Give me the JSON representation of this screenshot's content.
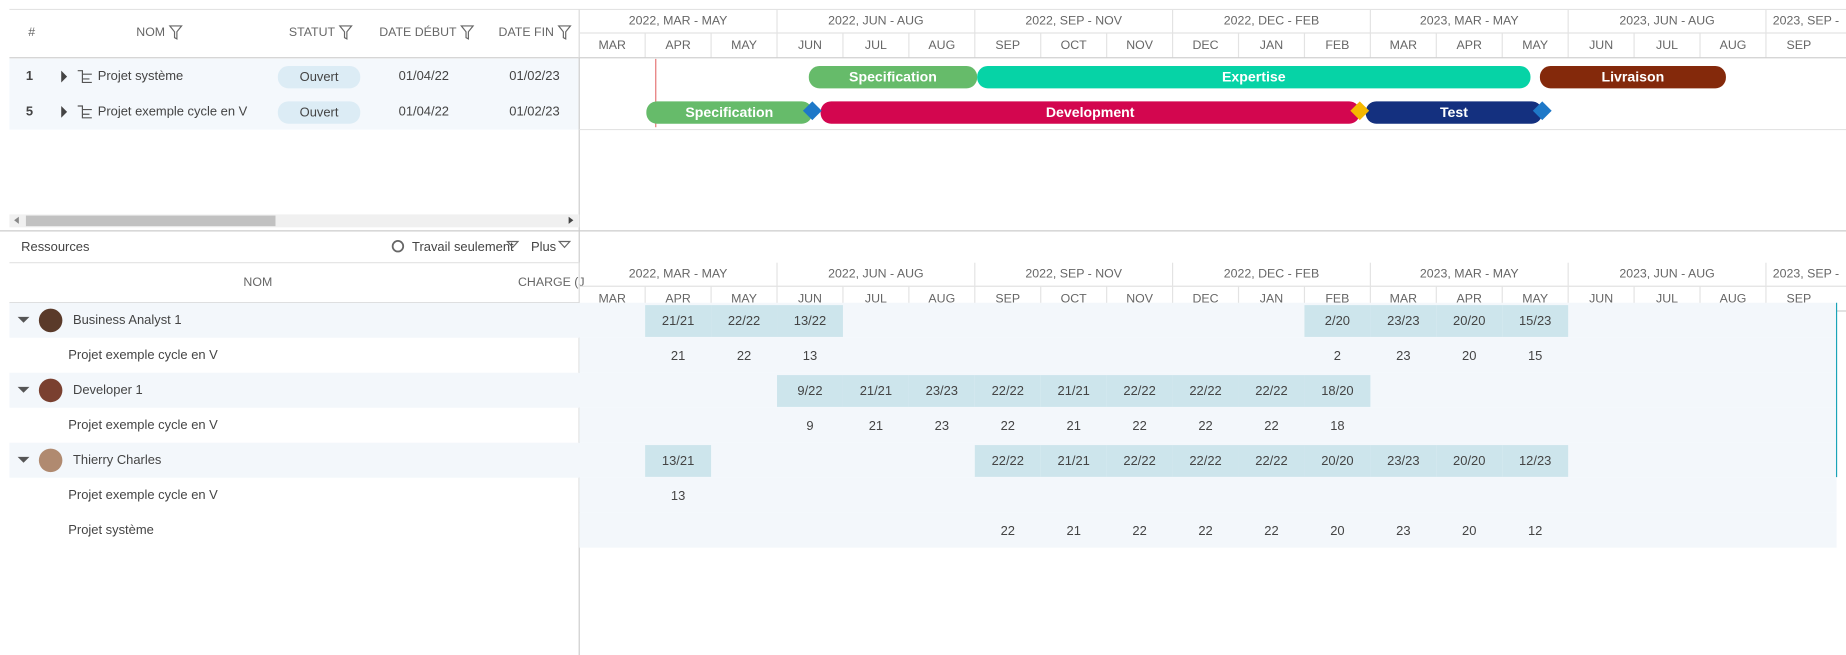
{
  "grid": {
    "headers": [
      "#",
      "NOM",
      "STATUT",
      "DATE DÉBUT",
      "DATE FIN"
    ],
    "rows": [
      {
        "id": "1",
        "name": "Projet système",
        "status": "Ouvert",
        "start": "01/04/22",
        "end": "01/02/23",
        "tasks": [
          "Specification",
          "Expertise",
          "Livraison"
        ]
      },
      {
        "id": "5",
        "name": "Projet exemple cycle en V",
        "status": "Ouvert",
        "start": "01/04/22",
        "end": "01/02/23",
        "tasks": [
          "Specification",
          "Development",
          "Test"
        ]
      }
    ]
  },
  "timeline": {
    "quarters": [
      "2022, MAR - MAY",
      "2022, JUN - AUG",
      "2022, SEP - NOV",
      "2022, DEC - FEB",
      "2023, MAR - MAY",
      "2023, JUN - AUG",
      "2023, SEP -"
    ],
    "months": [
      "MAR",
      "APR",
      "MAY",
      "JUN",
      "JUL",
      "AUG",
      "SEP",
      "OCT",
      "NOV",
      "DEC",
      "JAN",
      "FEB",
      "MAR",
      "APR",
      "MAY",
      "JUN",
      "JUL",
      "AUG",
      "SEP"
    ]
  },
  "resources": {
    "title": "Ressources",
    "options": [
      "Travail seulement",
      "Plus"
    ],
    "headers": [
      "NOM",
      "CHARGE (J"
    ],
    "rows": [
      {
        "name": "Business Analyst 1",
        "level": 0,
        "cells": [
          null,
          "21/21",
          "22/22",
          "13/22",
          null,
          null,
          null,
          null,
          null,
          null,
          null,
          "2/20",
          "23/23",
          "20/20",
          "15/23",
          null,
          null,
          null,
          null
        ]
      },
      {
        "name": "Projet exemple cycle en V",
        "level": 1,
        "cells": [
          null,
          "21",
          "22",
          "13",
          null,
          null,
          null,
          null,
          null,
          null,
          null,
          "2",
          "23",
          "20",
          "15",
          null,
          null,
          null,
          null
        ]
      },
      {
        "name": "Developer 1",
        "level": 0,
        "cells": [
          null,
          null,
          null,
          "9/22",
          "21/21",
          "23/23",
          "22/22",
          "21/21",
          "22/22",
          "22/22",
          "22/22",
          "18/20",
          null,
          null,
          null,
          null,
          null,
          null,
          null
        ]
      },
      {
        "name": "Projet exemple cycle en V",
        "level": 1,
        "cells": [
          null,
          null,
          null,
          "9",
          "21",
          "23",
          "22",
          "21",
          "22",
          "22",
          "22",
          "18",
          null,
          null,
          null,
          null,
          null,
          null,
          null
        ]
      },
      {
        "name": "Thierry Charles",
        "level": 0,
        "cells": [
          null,
          "13/21",
          null,
          null,
          null,
          null,
          "22/22",
          "21/21",
          "22/22",
          "22/22",
          "22/22",
          "20/20",
          "23/23",
          "20/20",
          "12/23",
          null,
          null,
          null,
          null
        ]
      },
      {
        "name": "Projet exemple cycle en V",
        "level": 1,
        "cells": [
          null,
          "13",
          null,
          null,
          null,
          null,
          null,
          null,
          null,
          null,
          null,
          null,
          null,
          null,
          null,
          null,
          null,
          null,
          null
        ]
      },
      {
        "name": "Projet système",
        "level": 1,
        "cells": [
          null,
          null,
          null,
          null,
          null,
          null,
          "22",
          "21",
          "22",
          "22",
          "22",
          "20",
          "23",
          "20",
          "12",
          null,
          null,
          null,
          null
        ]
      }
    ]
  }
}
